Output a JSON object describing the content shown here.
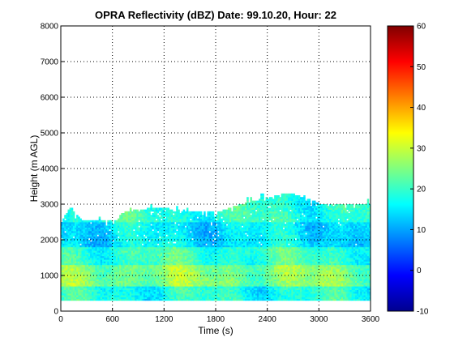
{
  "chart_data": {
    "type": "heatmap",
    "title": "OPRA Reflectivity (dBZ)  Date: 99.10.20, Hour: 22",
    "xlabel": "Time (s)",
    "ylabel": "Height (m AGL)",
    "xlim": [
      0,
      3600
    ],
    "ylim": [
      0,
      8000
    ],
    "x_ticks": [
      "0",
      "600",
      "1200",
      "1800",
      "2400",
      "3000",
      "3600"
    ],
    "y_ticks": [
      "0",
      "1000",
      "2000",
      "3000",
      "4000",
      "5000",
      "6000",
      "7000",
      "8000"
    ],
    "grid": true,
    "colorbar": {
      "range": [
        -10,
        60
      ],
      "ticks": [
        "-10",
        "0",
        "10",
        "20",
        "30",
        "40",
        "50",
        "60"
      ],
      "colormap": "jet"
    },
    "layers": [
      {
        "height_range_m": [
          300,
          700
        ],
        "typical_dBZ": 18
      },
      {
        "height_range_m": [
          700,
          1300
        ],
        "typical_dBZ": 25
      },
      {
        "height_range_m": [
          1300,
          1800
        ],
        "typical_dBZ": 20
      },
      {
        "height_range_m": [
          1800,
          2500
        ],
        "typical_dBZ": 15
      },
      {
        "height_range_m": [
          2500,
          3000
        ],
        "typical_dBZ": 19
      }
    ],
    "echo_top_m": [
      {
        "time_s": 0,
        "top_m": 2500
      },
      {
        "time_s": 100,
        "top_m": 2900
      },
      {
        "time_s": 250,
        "top_m": 2500
      },
      {
        "time_s": 650,
        "top_m": 2550
      },
      {
        "time_s": 700,
        "top_m": 2750
      },
      {
        "time_s": 1100,
        "top_m": 2900
      },
      {
        "time_s": 1400,
        "top_m": 2800
      },
      {
        "time_s": 1800,
        "top_m": 2750
      },
      {
        "time_s": 2100,
        "top_m": 3000
      },
      {
        "time_s": 2650,
        "top_m": 3300
      },
      {
        "time_s": 3000,
        "top_m": 3000
      },
      {
        "time_s": 3600,
        "top_m": 3000
      }
    ]
  }
}
